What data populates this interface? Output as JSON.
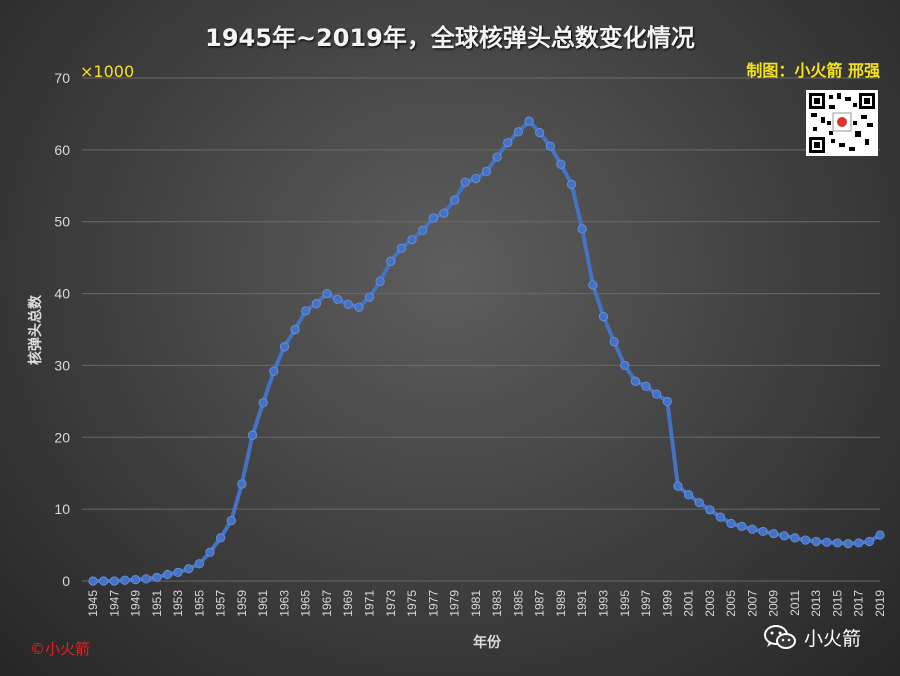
{
  "title": "1945年~2019年，全球核弹头总数变化情况",
  "credit": "制图：小火箭 邢强",
  "unit_label": "×1000",
  "copyright": "©小火箭",
  "brand": {
    "name": "小火箭",
    "icon": "wechat-icon"
  },
  "qr_icon": "qr-code-icon",
  "colors": {
    "line": "#4472c4",
    "credit": "#f5e31a",
    "copyright": "#e02424",
    "grid": "#6a6a6a"
  },
  "chart_data": {
    "type": "line",
    "title": "1945年~2019年，全球核弹头总数变化情况",
    "xlabel": "年份",
    "ylabel": "核弹头总数",
    "y_unit": "×1000",
    "ylim": [
      0,
      70
    ],
    "yticks": [
      0,
      10,
      20,
      30,
      40,
      50,
      60,
      70
    ],
    "grid": true,
    "x": [
      1945,
      1946,
      1947,
      1948,
      1949,
      1950,
      1951,
      1952,
      1953,
      1954,
      1955,
      1956,
      1957,
      1958,
      1959,
      1960,
      1961,
      1962,
      1963,
      1964,
      1965,
      1966,
      1967,
      1968,
      1969,
      1970,
      1971,
      1972,
      1973,
      1974,
      1975,
      1976,
      1977,
      1978,
      1979,
      1980,
      1981,
      1982,
      1983,
      1984,
      1985,
      1986,
      1987,
      1988,
      1989,
      1990,
      1991,
      1992,
      1993,
      1994,
      1995,
      1996,
      1997,
      1998,
      1999,
      2000,
      2001,
      2002,
      2003,
      2004,
      2005,
      2006,
      2007,
      2008,
      2009,
      2010,
      2011,
      2012,
      2013,
      2014,
      2015,
      2016,
      2017,
      2018,
      2019
    ],
    "xticks": [
      1945,
      1947,
      1949,
      1951,
      1953,
      1955,
      1957,
      1959,
      1961,
      1963,
      1965,
      1967,
      1969,
      1971,
      1973,
      1975,
      1977,
      1979,
      1981,
      1983,
      1985,
      1987,
      1989,
      1991,
      1993,
      1995,
      1997,
      1999,
      2001,
      2003,
      2005,
      2007,
      2009,
      2011,
      2013,
      2015,
      2017,
      2019
    ],
    "series": [
      {
        "values": [
          0.0,
          0.0,
          0.0,
          0.1,
          0.2,
          0.3,
          0.5,
          0.9,
          1.2,
          1.7,
          2.4,
          4.0,
          6.0,
          8.4,
          13.5,
          20.3,
          24.8,
          29.2,
          32.6,
          35.0,
          37.6,
          38.6,
          40.0,
          39.2,
          38.5,
          38.1,
          39.5,
          41.7,
          44.5,
          46.3,
          47.5,
          48.8,
          50.5,
          51.2,
          53.0,
          55.5,
          56.0,
          57.0,
          59.0,
          61.0,
          62.5,
          64.0,
          62.4,
          60.5,
          58.0,
          55.2,
          49.0,
          41.2,
          36.8,
          33.3,
          30.0,
          27.8,
          27.1,
          26.0,
          25.0,
          13.2,
          12.0,
          10.9,
          9.9,
          8.9,
          8.0,
          7.6,
          7.2,
          6.9,
          6.6,
          6.3,
          6.0,
          5.7,
          5.5,
          5.4,
          5.3,
          5.2,
          5.3,
          5.5,
          6.4
        ]
      }
    ]
  }
}
